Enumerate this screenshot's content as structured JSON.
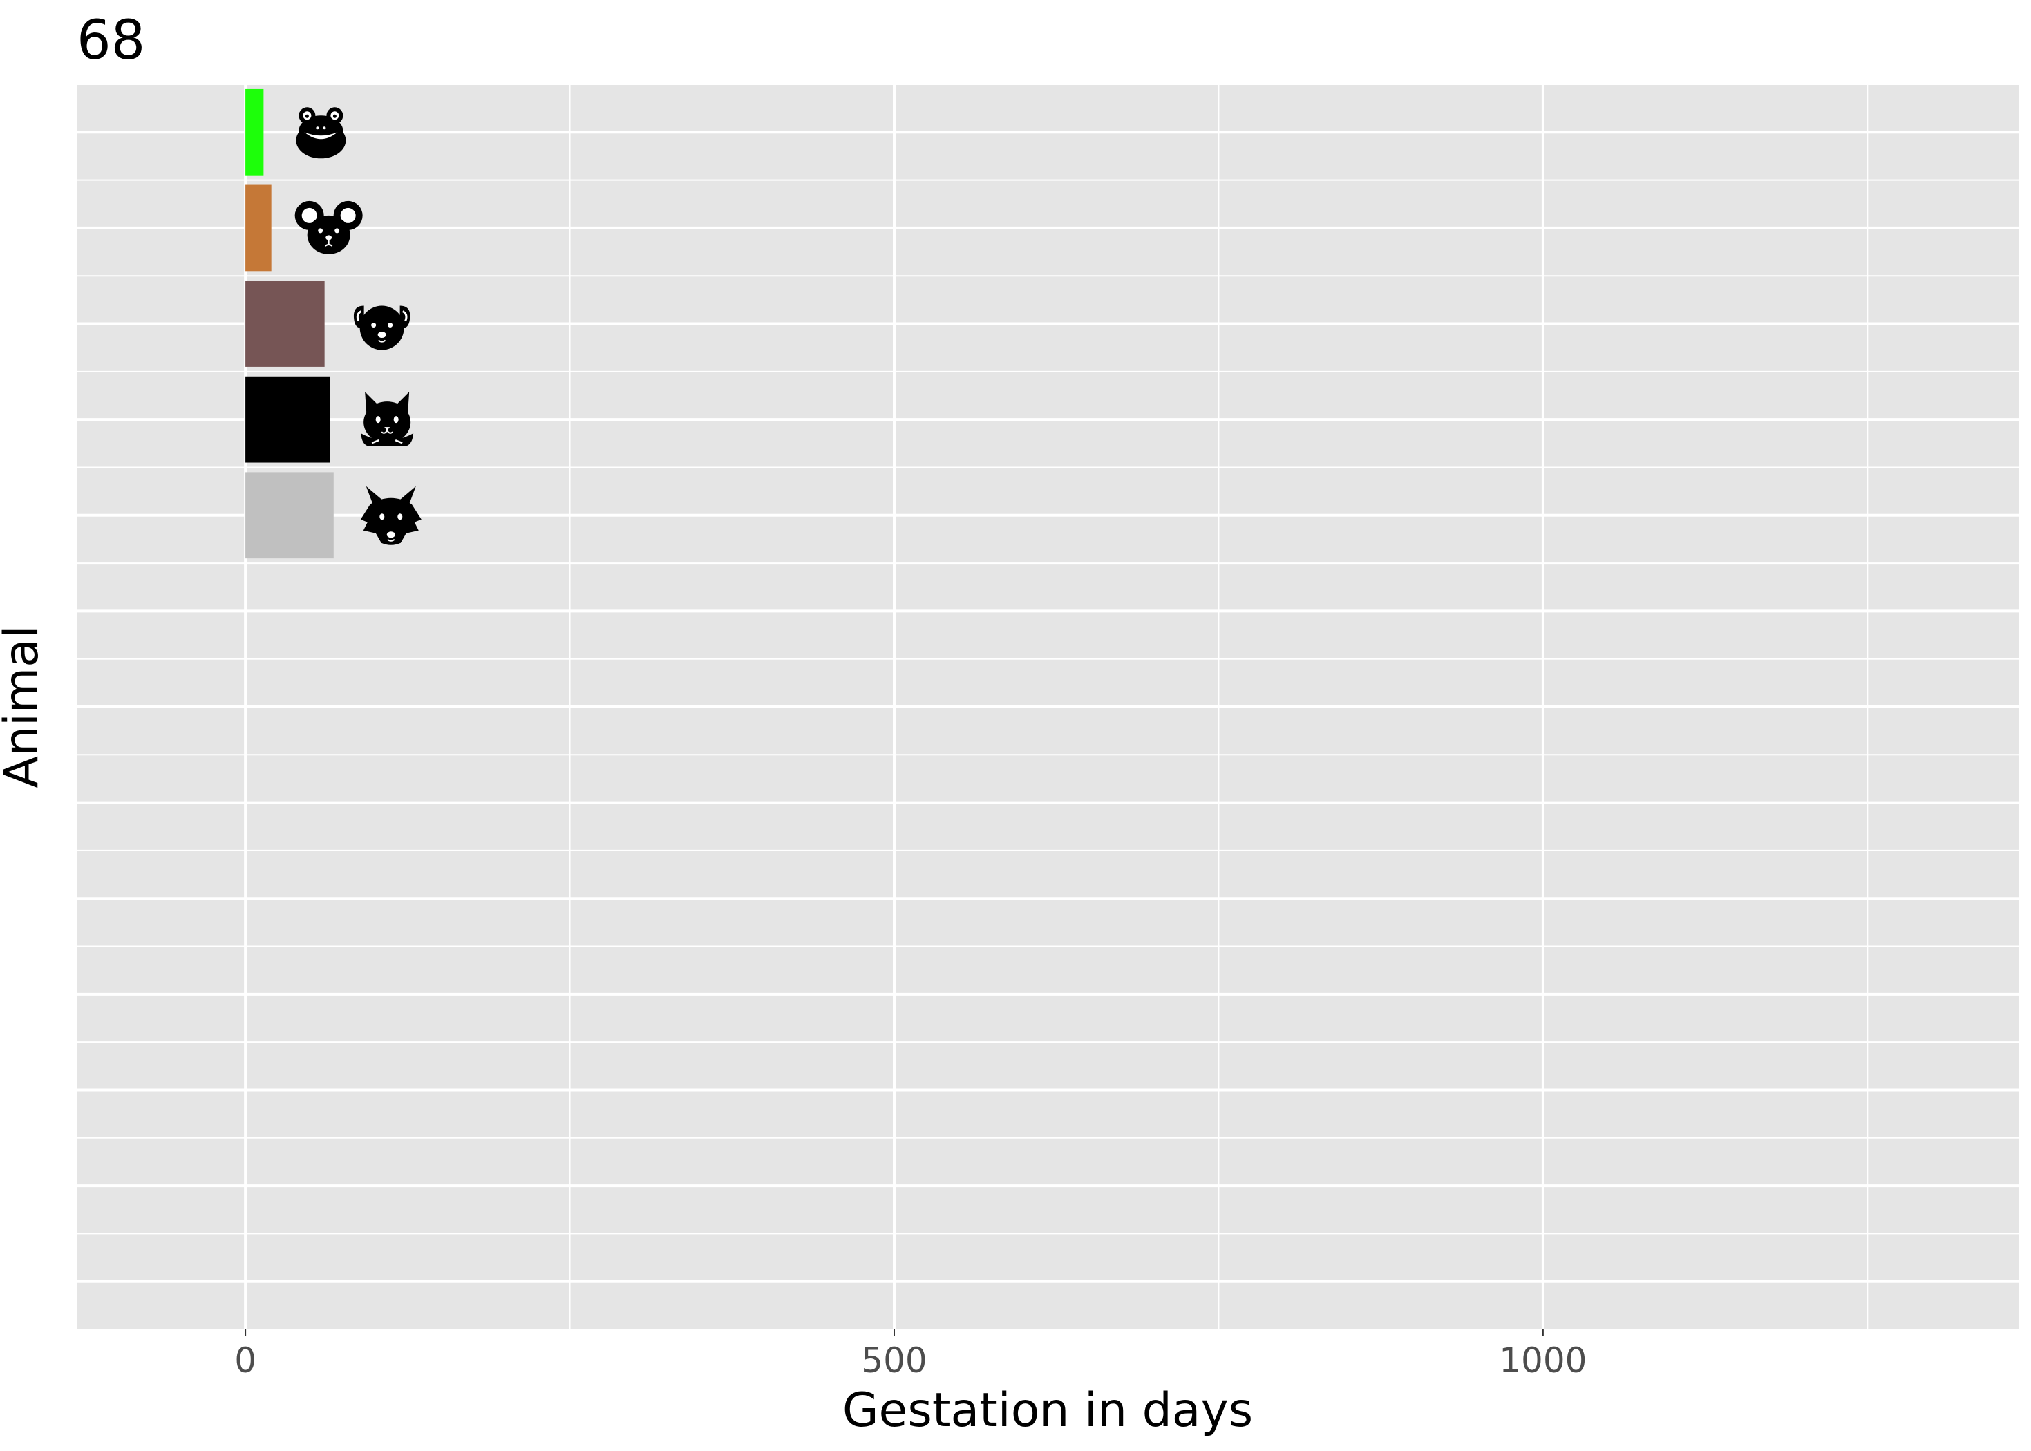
{
  "chart_data": {
    "type": "bar",
    "orientation": "horizontal",
    "title": "68",
    "xlabel": "Gestation in days",
    "ylabel": "Animal",
    "xlim": [
      -130,
      1367
    ],
    "x_ticks": [
      0,
      500,
      1000
    ],
    "x_minor_ticks": [
      250,
      750,
      1250
    ],
    "row_slots": 13,
    "grid": true,
    "legend": "none",
    "colors": {
      "panel_background": "#e5e5e5",
      "grid_line": "#ffffff",
      "tick_label": "#4d4d4d",
      "icon": "#000000"
    },
    "bars": [
      {
        "value": 14,
        "color": "#1dff0a",
        "icon": "frog-icon"
      },
      {
        "value": 20,
        "color": "#c57837",
        "icon": "mouse-icon"
      },
      {
        "value": 61,
        "color": "#765555",
        "icon": "dog-icon"
      },
      {
        "value": 65,
        "color": "#000000",
        "icon": "cat-icon"
      },
      {
        "value": 68,
        "color": "#c0c0c0",
        "icon": "wolf-icon"
      }
    ]
  }
}
